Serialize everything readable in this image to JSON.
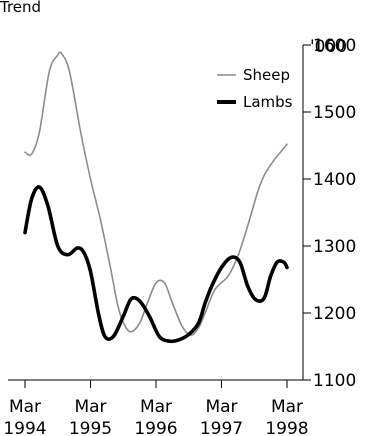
{
  "chart_data": {
    "type": "line",
    "title": "Trend",
    "unit_label": "'000",
    "ylim": [
      1100,
      1600
    ],
    "yticks": [
      1100,
      1200,
      1300,
      1400,
      1500,
      1600
    ],
    "xlim": [
      1994.0,
      1998.2
    ],
    "x_ticks": [
      {
        "value": 1994.2,
        "month": "Mar",
        "year": "1994"
      },
      {
        "value": 1995.2,
        "month": "Mar",
        "year": "1995"
      },
      {
        "value": 1996.2,
        "month": "Mar",
        "year": "1996"
      },
      {
        "value": 1997.2,
        "month": "Mar",
        "year": "1997"
      },
      {
        "value": 1998.2,
        "month": "Mar",
        "year": "1998"
      }
    ],
    "grid": false,
    "legend": "top-right",
    "series": [
      {
        "name": "Sheep",
        "color": "#8c8c8c",
        "line_style": "thin",
        "points": [
          [
            1994.2,
            1440
          ],
          [
            1994.3,
            1437
          ],
          [
            1994.42,
            1470
          ],
          [
            1994.57,
            1560
          ],
          [
            1994.7,
            1585
          ],
          [
            1994.76,
            1587
          ],
          [
            1994.88,
            1560
          ],
          [
            1995.05,
            1470
          ],
          [
            1995.2,
            1400
          ],
          [
            1995.35,
            1340
          ],
          [
            1995.5,
            1270
          ],
          [
            1995.62,
            1210
          ],
          [
            1995.72,
            1182
          ],
          [
            1995.82,
            1172
          ],
          [
            1995.95,
            1185
          ],
          [
            1996.07,
            1215
          ],
          [
            1996.2,
            1245
          ],
          [
            1996.33,
            1245
          ],
          [
            1996.45,
            1215
          ],
          [
            1996.6,
            1180
          ],
          [
            1996.73,
            1167
          ],
          [
            1996.85,
            1178
          ],
          [
            1996.95,
            1200
          ],
          [
            1997.1,
            1235
          ],
          [
            1997.3,
            1255
          ],
          [
            1997.45,
            1285
          ],
          [
            1997.6,
            1330
          ],
          [
            1997.75,
            1380
          ],
          [
            1997.85,
            1405
          ],
          [
            1998.0,
            1428
          ],
          [
            1998.1,
            1440
          ],
          [
            1998.2,
            1452
          ]
        ]
      },
      {
        "name": "Lambs",
        "color": "#000000",
        "line_style": "thick",
        "points": [
          [
            1994.2,
            1320
          ],
          [
            1994.3,
            1370
          ],
          [
            1994.42,
            1388
          ],
          [
            1994.55,
            1360
          ],
          [
            1994.7,
            1300
          ],
          [
            1994.85,
            1287
          ],
          [
            1995.0,
            1297
          ],
          [
            1995.1,
            1290
          ],
          [
            1995.2,
            1262
          ],
          [
            1995.32,
            1200
          ],
          [
            1995.42,
            1165
          ],
          [
            1995.55,
            1165
          ],
          [
            1995.7,
            1195
          ],
          [
            1995.82,
            1221
          ],
          [
            1995.95,
            1218
          ],
          [
            1996.1,
            1195
          ],
          [
            1996.25,
            1165
          ],
          [
            1996.4,
            1158
          ],
          [
            1996.55,
            1160
          ],
          [
            1996.7,
            1168
          ],
          [
            1996.85,
            1185
          ],
          [
            1996.95,
            1215
          ],
          [
            1997.05,
            1240
          ],
          [
            1997.2,
            1268
          ],
          [
            1997.35,
            1283
          ],
          [
            1997.48,
            1276
          ],
          [
            1997.6,
            1240
          ],
          [
            1997.72,
            1220
          ],
          [
            1997.85,
            1222
          ],
          [
            1997.95,
            1255
          ],
          [
            1998.05,
            1276
          ],
          [
            1998.15,
            1276
          ],
          [
            1998.2,
            1268
          ]
        ]
      }
    ]
  }
}
